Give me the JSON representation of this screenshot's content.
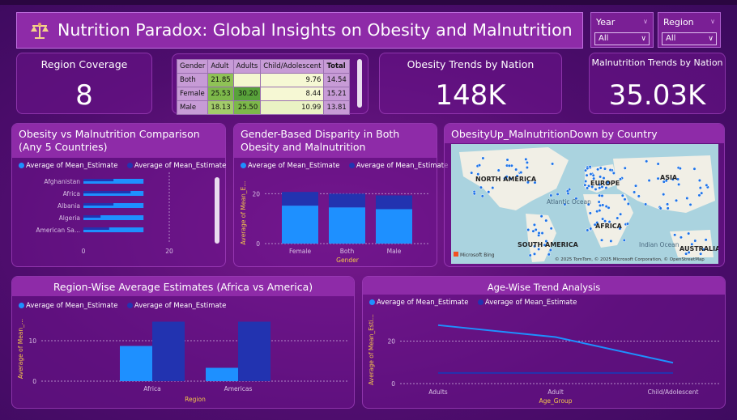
{
  "header": {
    "title": "Nutrition Paradox: Global Insights on Obesity and Malnutrition"
  },
  "slicers": {
    "year": {
      "label": "Year",
      "value": "All"
    },
    "region": {
      "label": "Region",
      "value": "All"
    }
  },
  "kpis": {
    "region_coverage": {
      "label": "Region Coverage",
      "value": "8"
    },
    "obesity_trends": {
      "label": "Obesity Trends by Nation",
      "value": "148K"
    },
    "malnutrition_trends": {
      "label": "Malnutrition Trends by Nation",
      "value": "35.03K"
    }
  },
  "matrix": {
    "headers": [
      "Gender",
      "Adult",
      "Adults",
      "Child/Adolescent",
      "Total"
    ],
    "rows": [
      {
        "gender": "Both",
        "adult": "21.85",
        "adults": "",
        "child": "9.76",
        "total": "14.54"
      },
      {
        "gender": "Female",
        "adult": "25.53",
        "adults": "30.20",
        "child": "8.44",
        "total": "15.21"
      },
      {
        "gender": "Male",
        "adult": "18.13",
        "adults": "25.50",
        "child": "10.99",
        "total": "13.81"
      }
    ]
  },
  "legend": {
    "series_a": "Average of Mean_Estimate",
    "series_b": "Average of Mean_Estimate"
  },
  "colors": {
    "series_a": "#1e90ff",
    "series_b": "#2233b0",
    "axis_title": "#f5c84a"
  },
  "map": {
    "title": "ObesityUp_MalnutritionDown by Country",
    "labels": {
      "north_america": "NORTH AMERICA",
      "europe": "EUROPE",
      "asia": "ASIA",
      "atlantic": "Atlantic\nOcean",
      "africa": "AFRICA",
      "south_america": "SOUTH AMERICA",
      "indian": "Indian\nOcean",
      "australia": "AUSTRALIA"
    },
    "bing": "Microsoft Bing",
    "attribution": "© 2025 TomTom, © 2025 Microsoft Corporation, © OpenStreetMap"
  },
  "chart_data": [
    {
      "type": "bar",
      "title": "Obesity vs Malnutrition Comparison (Any 5 Countries)",
      "orientation": "horizontal",
      "categories": [
        "Afghanistan",
        "Africa",
        "Albania",
        "Algeria",
        "American Sa..."
      ],
      "series": [
        {
          "name": "Average of Mean_Estimate",
          "values": [
            7,
            11,
            7,
            4,
            6
          ]
        },
        {
          "name": "Average of Mean_Estimate",
          "values": [
            14,
            14,
            14,
            14,
            14
          ]
        }
      ],
      "xticks": [
        "0",
        "20"
      ],
      "xlim": [
        0,
        20
      ]
    },
    {
      "type": "bar",
      "title": "Gender-Based Disparity in Both Obesity and Malnutrition",
      "stacked": true,
      "categories": [
        "Female",
        "Both",
        "Male"
      ],
      "series": [
        {
          "name": "Average of Mean_Estimate",
          "values": [
            15.2,
            14.5,
            13.8
          ]
        },
        {
          "name": "Average of Mean_Estimate",
          "values": [
            5.5,
            5.5,
            5.5
          ]
        }
      ],
      "xlabel": "Gender",
      "ylabel": "Average of Mean_E...",
      "yticks": [
        "0",
        "20"
      ],
      "ylim": [
        0,
        24
      ]
    },
    {
      "type": "bar",
      "title": "Region-Wise Average Estimates (Africa vs America)",
      "categories": [
        "Africa",
        "Americas"
      ],
      "series": [
        {
          "name": "Average of Mean_Estimate",
          "values": [
            8.7,
            3.3
          ]
        },
        {
          "name": "Average of Mean_Estimate",
          "values": [
            14.7,
            14.7
          ]
        }
      ],
      "xlabel": "Region",
      "ylabel": "Average of Mean_...",
      "yticks": [
        "0",
        "10"
      ],
      "ylim": [
        0,
        16
      ]
    },
    {
      "type": "line",
      "title": "Age-Wise Trend Analysis",
      "categories": [
        "Adults",
        "Adult",
        "Child/Adolescent"
      ],
      "series": [
        {
          "name": "Average of Mean_Estimate",
          "values": [
            27.5,
            21.9,
            9.8
          ]
        },
        {
          "name": "Average of Mean_Estimate",
          "values": [
            5,
            5,
            5
          ]
        }
      ],
      "xlabel": "Age_Group",
      "ylabel": "Average of Mean_Esti...",
      "yticks": [
        "0",
        "20"
      ],
      "ylim": [
        0,
        32
      ]
    }
  ]
}
